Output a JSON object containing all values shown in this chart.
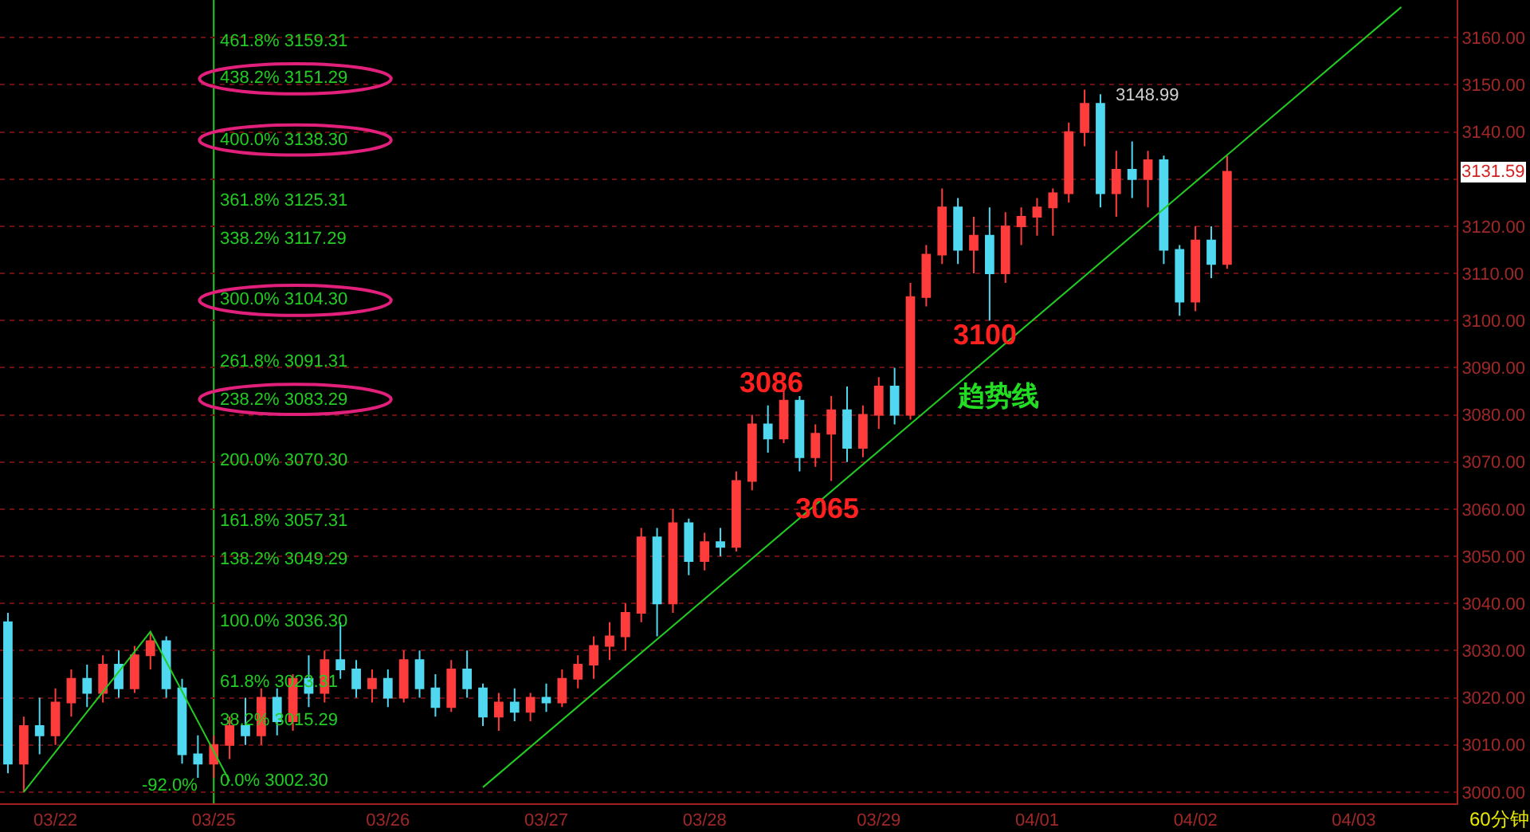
{
  "chart_data": {
    "type": "candlestick",
    "categories": [
      null,
      null,
      null,
      "03/22",
      null,
      null,
      null,
      null,
      null,
      null,
      null,
      null,
      null,
      "03/25",
      null,
      null,
      null,
      null,
      null,
      null,
      null,
      null,
      null,
      null,
      "03/26",
      null,
      null,
      null,
      null,
      null,
      null,
      null,
      null,
      null,
      "03/27",
      null,
      null,
      null,
      null,
      null,
      null,
      null,
      null,
      null,
      "03/28",
      null,
      null,
      null,
      null,
      null,
      null,
      null,
      null,
      null,
      null,
      "03/29",
      null,
      null,
      null,
      null,
      null,
      null,
      null,
      null,
      null,
      "04/01",
      null,
      null,
      null,
      null,
      null,
      null,
      null,
      null,
      null,
      "04/02",
      null,
      null,
      null,
      null,
      null,
      null,
      null,
      null,
      null,
      "04/03",
      null,
      null,
      null,
      null,
      null,
      null
    ],
    "ohlc": [
      [
        3036,
        3038,
        3004,
        3006
      ],
      [
        3006,
        3016,
        3000,
        3014
      ],
      [
        3014,
        3020,
        3008,
        3012
      ],
      [
        3012,
        3022,
        3010,
        3019
      ],
      [
        3019,
        3026,
        3016,
        3024
      ],
      [
        3024,
        3027,
        3018,
        3021
      ],
      [
        3021,
        3029,
        3019,
        3027
      ],
      [
        3027,
        3030,
        3020,
        3022
      ],
      [
        3022,
        3031,
        3021,
        3029
      ],
      [
        3029,
        3034,
        3026,
        3032
      ],
      [
        3032,
        3033,
        3020,
        3022
      ],
      [
        3022,
        3024,
        3006,
        3008
      ],
      [
        3008,
        3012,
        3003,
        3006
      ],
      [
        3006,
        3012,
        3003,
        3010
      ],
      [
        3010,
        3016,
        3007,
        3014
      ],
      [
        3014,
        3020,
        3010,
        3012
      ],
      [
        3012,
        3022,
        3010,
        3020
      ],
      [
        3020,
        3022,
        3012,
        3015
      ],
      [
        3015,
        3025,
        3013,
        3024
      ],
      [
        3024,
        3029,
        3018,
        3021
      ],
      [
        3021,
        3030,
        3019,
        3028
      ],
      [
        3028,
        3036,
        3024,
        3026
      ],
      [
        3026,
        3028,
        3020,
        3022
      ],
      [
        3022,
        3026,
        3019,
        3024
      ],
      [
        3024,
        3026,
        3018,
        3020
      ],
      [
        3020,
        3030,
        3019,
        3028
      ],
      [
        3028,
        3030,
        3020,
        3022
      ],
      [
        3022,
        3025,
        3016,
        3018
      ],
      [
        3018,
        3028,
        3017,
        3026
      ],
      [
        3026,
        3030,
        3020,
        3022
      ],
      [
        3022,
        3023,
        3014,
        3016
      ],
      [
        3016,
        3021,
        3013,
        3019
      ],
      [
        3019,
        3022,
        3015,
        3017
      ],
      [
        3017,
        3021,
        3015,
        3020
      ],
      [
        3020,
        3023,
        3017,
        3019
      ],
      [
        3019,
        3026,
        3018,
        3024
      ],
      [
        3024,
        3029,
        3022,
        3027
      ],
      [
        3027,
        3033,
        3024,
        3031
      ],
      [
        3031,
        3036,
        3028,
        3033
      ],
      [
        3033,
        3040,
        3030,
        3038
      ],
      [
        3038,
        3056,
        3036,
        3054
      ],
      [
        3054,
        3056,
        3033,
        3040
      ],
      [
        3040,
        3060,
        3038,
        3057
      ],
      [
        3057,
        3058,
        3046,
        3049
      ],
      [
        3049,
        3055,
        3047,
        3053
      ],
      [
        3053,
        3056,
        3050,
        3052
      ],
      [
        3052,
        3068,
        3051,
        3066
      ],
      [
        3066,
        3080,
        3064,
        3078
      ],
      [
        3078,
        3082,
        3072,
        3075
      ],
      [
        3075,
        3086,
        3074,
        3083
      ],
      [
        3083,
        3084,
        3068,
        3071
      ],
      [
        3071,
        3078,
        3069,
        3076
      ],
      [
        3076,
        3084,
        3066,
        3081
      ],
      [
        3081,
        3086,
        3070,
        3073
      ],
      [
        3073,
        3082,
        3071,
        3080
      ],
      [
        3080,
        3088,
        3077,
        3086
      ],
      [
        3086,
        3090,
        3078,
        3080
      ],
      [
        3080,
        3108,
        3079,
        3105
      ],
      [
        3105,
        3116,
        3103,
        3114
      ],
      [
        3114,
        3128,
        3112,
        3124
      ],
      [
        3124,
        3126,
        3112,
        3115
      ],
      [
        3115,
        3122,
        3110,
        3118
      ],
      [
        3118,
        3124,
        3100,
        3110
      ],
      [
        3110,
        3123,
        3108,
        3120
      ],
      [
        3120,
        3124,
        3116,
        3122
      ],
      [
        3122,
        3126,
        3118,
        3124
      ],
      [
        3124,
        3128,
        3118,
        3127
      ],
      [
        3127,
        3142,
        3125,
        3140
      ],
      [
        3140,
        3148.99,
        3137,
        3146
      ],
      [
        3146,
        3148,
        3124,
        3127
      ],
      [
        3127,
        3136,
        3122,
        3132
      ],
      [
        3132,
        3138,
        3126,
        3130
      ],
      [
        3130,
        3136,
        3124,
        3134
      ],
      [
        3134,
        3135,
        3112,
        3115
      ],
      [
        3115,
        3116,
        3101,
        3104
      ],
      [
        3104,
        3120,
        3102,
        3117
      ],
      [
        3117,
        3120,
        3109,
        3112
      ],
      [
        3112,
        3135,
        3111,
        3131.59
      ],
      null,
      null,
      null,
      null,
      null,
      null,
      null,
      null,
      null,
      null,
      null,
      null,
      null,
      null
    ],
    "colors": [
      "#4fd8f0",
      "#ff3c3c",
      "#4fd8f0",
      "#ff3c3c",
      "#ff3c3c",
      "#4fd8f0",
      "#ff3c3c",
      "#4fd8f0",
      "#ff3c3c",
      "#ff3c3c",
      "#4fd8f0",
      "#4fd8f0",
      "#4fd8f0",
      "#ff3c3c",
      "#ff3c3c",
      "#4fd8f0",
      "#ff3c3c",
      "#4fd8f0",
      "#ff3c3c",
      "#4fd8f0",
      "#ff3c3c",
      "#4fd8f0",
      "#4fd8f0",
      "#ff3c3c",
      "#4fd8f0",
      "#ff3c3c",
      "#4fd8f0",
      "#4fd8f0",
      "#ff3c3c",
      "#4fd8f0",
      "#4fd8f0",
      "#ff3c3c",
      "#4fd8f0",
      "#ff3c3c",
      "#4fd8f0",
      "#ff3c3c",
      "#ff3c3c",
      "#ff3c3c",
      "#ff3c3c",
      "#ff3c3c",
      "#ff3c3c",
      "#4fd8f0",
      "#ff3c3c",
      "#4fd8f0",
      "#ff3c3c",
      "#4fd8f0",
      "#ff3c3c",
      "#ff3c3c",
      "#4fd8f0",
      "#ff3c3c",
      "#4fd8f0",
      "#ff3c3c",
      "#ff3c3c",
      "#4fd8f0",
      "#ff3c3c",
      "#ff3c3c",
      "#4fd8f0",
      "#ff3c3c",
      "#ff3c3c",
      "#ff3c3c",
      "#4fd8f0",
      "#ff3c3c",
      "#4fd8f0",
      "#ff3c3c",
      "#ff3c3c",
      "#ff3c3c",
      "#ff3c3c",
      "#ff3c3c",
      "#ff3c3c",
      "#4fd8f0",
      "#ff3c3c",
      "#4fd8f0",
      "#ff3c3c",
      "#4fd8f0",
      "#4fd8f0",
      "#ff3c3c",
      "#4fd8f0",
      "#ff3c3c",
      null,
      null,
      null,
      null,
      null,
      null,
      null,
      null,
      null,
      null,
      null,
      null,
      null,
      null
    ],
    "series": [
      {
        "type": "line",
        "color": "#22cc22",
        "values": [
          null,
          3000,
          null,
          null,
          null,
          null,
          null,
          null,
          null,
          3034,
          null,
          null,
          null,
          null,
          3002.3,
          null,
          null,
          null,
          null,
          null,
          null,
          null,
          null,
          null,
          null,
          null,
          null,
          null,
          null,
          null,
          null,
          null,
          null,
          null,
          null,
          null,
          null,
          null,
          null,
          null,
          null,
          null,
          null,
          null,
          null,
          null,
          null,
          null,
          null,
          null,
          null,
          null,
          null,
          null,
          null,
          null,
          null,
          null,
          null,
          null,
          null,
          null,
          null,
          null,
          null,
          null,
          null,
          null,
          null,
          null,
          null,
          null,
          null,
          null,
          null,
          null,
          null,
          null,
          null,
          null,
          null,
          null,
          null,
          null,
          null,
          null,
          null,
          null,
          null,
          null,
          null,
          null
        ]
      },
      {
        "type": "line",
        "color": "#22cc22",
        "values": [
          null,
          null,
          null,
          null,
          null,
          null,
          null,
          null,
          null,
          null,
          null,
          null,
          null,
          null,
          null,
          null,
          null,
          null,
          null,
          null,
          null,
          null,
          null,
          null,
          null,
          null,
          null,
          null,
          null,
          null,
          3001,
          null,
          null,
          null,
          null,
          null,
          null,
          null,
          null,
          null,
          null,
          null,
          null,
          null,
          null,
          null,
          null,
          null,
          null,
          null,
          null,
          null,
          null,
          null,
          null,
          null,
          null,
          null,
          null,
          null,
          null,
          null,
          null,
          null,
          null,
          null,
          null,
          null,
          null,
          null,
          null,
          null,
          null,
          null,
          null,
          null,
          null,
          null,
          null,
          null,
          null,
          null,
          null,
          null,
          null,
          null,
          null,
          null,
          3166.5,
          null,
          null,
          null
        ]
      }
    ],
    "ref_lines": [
      {
        "axis": "x",
        "value": "03/25",
        "label": null,
        "color": "#22cc22"
      }
    ],
    "annotations": [
      {
        "text": "461.8% 3159.31",
        "x": "03/25",
        "y": 3159.31
      },
      {
        "text": "438.2% 3151.29",
        "x": "03/25",
        "y": 3151.29
      },
      {
        "text": "400.0% 3138.30",
        "x": "03/25",
        "y": 3138.3
      },
      {
        "text": "361.8% 3125.31",
        "x": "03/25",
        "y": 3125.31
      },
      {
        "text": "338.2% 3117.29",
        "x": "03/25",
        "y": 3117.29
      },
      {
        "text": "300.0% 3104.30",
        "x": "03/25",
        "y": 3104.3
      },
      {
        "text": "261.8% 3091.31",
        "x": "03/25",
        "y": 3091.31
      },
      {
        "text": "238.2% 3083.29",
        "x": "03/25",
        "y": 3083.29
      },
      {
        "text": "200.0% 3070.30",
        "x": "03/25",
        "y": 3070.3
      },
      {
        "text": "161.8% 3057.31",
        "x": "03/25",
        "y": 3057.31
      },
      {
        "text": "138.2% 3049.29",
        "x": "03/25",
        "y": 3049.29
      },
      {
        "text": "100.0% 3036.30",
        "x": "03/25",
        "y": 3036.3
      },
      {
        "text": "61.8% 3023.31",
        "x": "03/25",
        "y": 3023.31
      },
      {
        "text": "38.2% 3015.29",
        "x": "03/25",
        "y": 3015.29
      },
      {
        "text": "0.0% 3002.30",
        "x": "03/25",
        "y": 3002.3
      },
      {
        "text": "-92.0%",
        "x": "03/25",
        "y": 3002.3
      },
      "3086",
      {
        "text": "3065",
        "y": 3065
      },
      "3100",
      "趋势线",
      "3148.99",
      {
        "text": "3131.59",
        "y": 3131.59
      },
      "60分钟"
    ],
    "ylim": [
      2997.6,
      3168
    ],
    "yticks": [
      {
        "value": 3000,
        "label": "3000.00"
      },
      {
        "value": 3010,
        "label": "3010.00"
      },
      {
        "value": 3020,
        "label": "3020.00"
      },
      {
        "value": 3030,
        "label": "3030.00"
      },
      {
        "value": 3040,
        "label": "3040.00"
      },
      {
        "value": 3050,
        "label": "3050.00"
      },
      {
        "value": 3060,
        "label": "3060.00"
      },
      {
        "value": 3070,
        "label": "3070.00"
      },
      {
        "value": 3080,
        "label": "3080.00"
      },
      {
        "value": 3090,
        "label": "3090.00"
      },
      {
        "value": 3100,
        "label": "3100.00"
      },
      {
        "value": 3110,
        "label": "3110.00"
      },
      {
        "value": 3120,
        "label": "3120.00"
      },
      {
        "value": 3130,
        "label": null
      },
      {
        "value": 3140,
        "label": "3140.00"
      },
      {
        "value": 3150,
        "label": "3150.00"
      },
      {
        "value": 3160,
        "label": "3160.00"
      }
    ],
    "grid": "y"
  }
}
